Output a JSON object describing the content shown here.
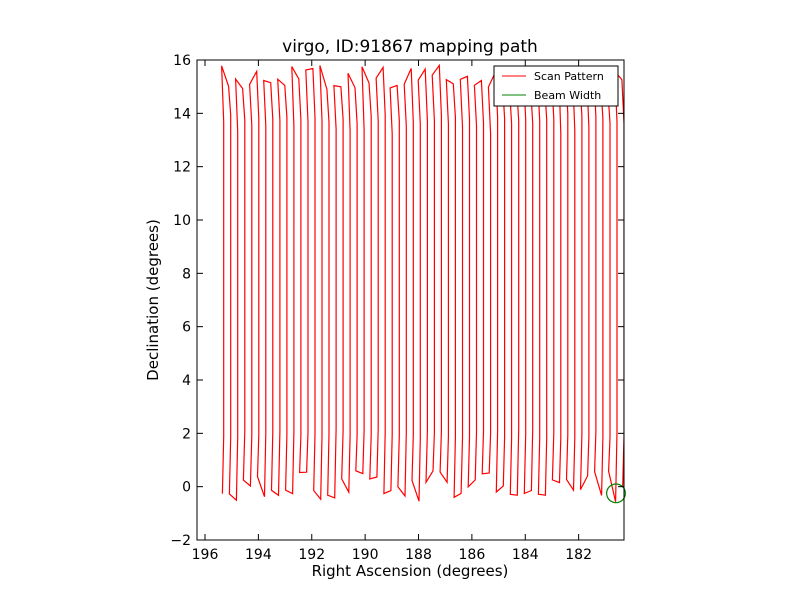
{
  "chart_data": {
    "type": "line",
    "title": "virgo, ID:91867 mapping path",
    "xlabel": "Right Ascension (degrees)",
    "ylabel": "Declination (degrees)",
    "xlim": [
      196.3,
      180.3
    ],
    "ylim": [
      -2,
      16
    ],
    "x_ticks": [
      196,
      194,
      192,
      190,
      188,
      186,
      184,
      182
    ],
    "y_ticks": [
      -2,
      0,
      2,
      4,
      6,
      8,
      10,
      12,
      14,
      16
    ],
    "x_tick_labels": [
      "196",
      "194",
      "192",
      "190",
      "188",
      "186",
      "184",
      "182"
    ],
    "y_tick_labels": [
      "−2",
      "0",
      "2",
      "4",
      "6",
      "8",
      "10",
      "12",
      "14",
      "16"
    ],
    "legend": {
      "position": "top-right",
      "entries": [
        {
          "label": "Scan Pattern",
          "color": "#ff0000"
        },
        {
          "label": "Beam Width",
          "color": "#008000"
        }
      ]
    },
    "series": [
      {
        "name": "Scan Pattern",
        "color": "#ff0000",
        "ra_start": 195.3,
        "ra_end": 180.3,
        "scan_count": 58,
        "dec_low": 1.8,
        "dec_high": 15.5,
        "dec_min_excursion": -0.7,
        "dec_max_excursion": 15.9
      },
      {
        "name": "Beam Width",
        "color": "#008000",
        "center": [
          180.6,
          -0.25
        ],
        "radius_deg": 0.35
      }
    ]
  }
}
